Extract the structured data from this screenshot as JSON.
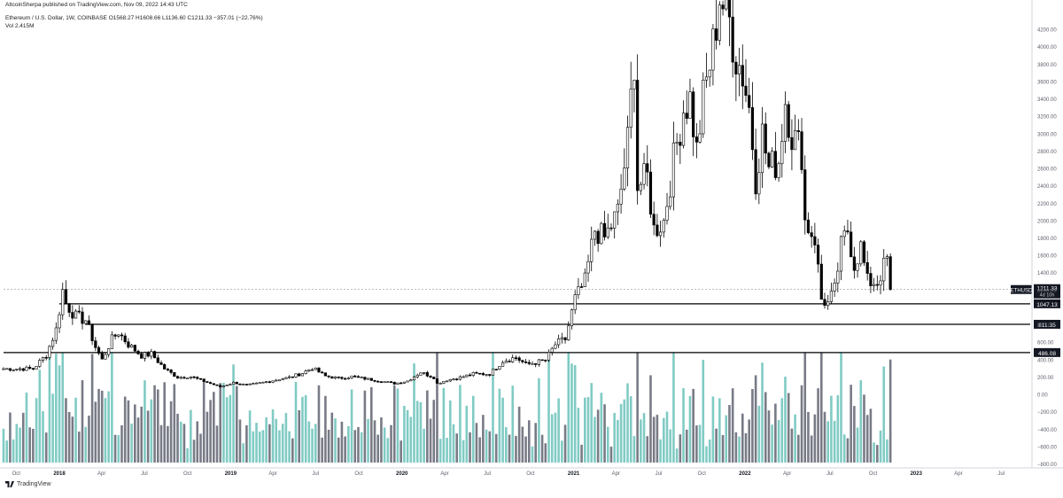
{
  "header": {
    "published": "AltcoinSherpa published on TradingView.com, Nov 09, 2022 14:43 UTC",
    "symbol": "Ethereum / U.S. Dollar, 1W, COINBASE",
    "ohlc": "O1568.27  H1608.66  L1136.60  C1211.33  −357.01 (−22.76%)",
    "volume": "Vol  2.415M"
  },
  "brand": {
    "label": "TradingView"
  },
  "colors": {
    "up_candle": "#ffffff",
    "down_candle": "#000000",
    "candle_outline": "#000000",
    "volume_up": "#80cbc4",
    "volume_down": "#787b86",
    "level_line": "#000000",
    "price_line": "#9598a1"
  },
  "chart_data": {
    "type": "candlestick",
    "interval": "1W",
    "x_tick_labels": [
      "Oct",
      "2018",
      "Apr",
      "Jul",
      "Oct",
      "2019",
      "Apr",
      "Jul",
      "Oct",
      "2020",
      "Apr",
      "Jul",
      "Oct",
      "2021",
      "Apr",
      "Jul",
      "Oct",
      "2022",
      "Apr",
      "Jul",
      "Oct",
      "2023",
      "Apr",
      "Jul"
    ],
    "y_tick_labels": [
      "4200.00",
      "4000.00",
      "3800.00",
      "3600.00",
      "3400.00",
      "3200.00",
      "3000.00",
      "2800.00",
      "2600.00",
      "2400.00",
      "2200.00",
      "2000.00",
      "1800.00",
      "1600.00",
      "1400.00",
      "1200.00",
      "800.00",
      "600.00",
      "400.00",
      "200.00",
      "0.00",
      "−200.00",
      "−400.00",
      "−600.00",
      "−800.00"
    ],
    "ylim": [
      -800,
      4400
    ],
    "price_points": [
      [
        "2017-09-04",
        300
      ],
      [
        "2017-10-02",
        300
      ],
      [
        "2017-11-06",
        300
      ],
      [
        "2017-12-04",
        460
      ],
      [
        "2017-12-25",
        750
      ],
      [
        "2018-01-08",
        1200
      ],
      [
        "2018-01-15",
        1050
      ],
      [
        "2018-02-05",
        900
      ],
      [
        "2018-02-26",
        860
      ],
      [
        "2018-03-19",
        550
      ],
      [
        "2018-04-02",
        400
      ],
      [
        "2018-04-23",
        640
      ],
      [
        "2018-05-07",
        720
      ],
      [
        "2018-05-28",
        580
      ],
      [
        "2018-06-25",
        450
      ],
      [
        "2018-07-16",
        470
      ],
      [
        "2018-08-13",
        300
      ],
      [
        "2018-09-10",
        200
      ],
      [
        "2018-10-08",
        210
      ],
      [
        "2018-11-19",
        130
      ],
      [
        "2018-12-10",
        90
      ],
      [
        "2019-01-07",
        140
      ],
      [
        "2019-02-04",
        110
      ],
      [
        "2019-03-04",
        135
      ],
      [
        "2019-04-01",
        165
      ],
      [
        "2019-05-06",
        200
      ],
      [
        "2019-06-03",
        250
      ],
      [
        "2019-06-24",
        310
      ],
      [
        "2019-07-22",
        215
      ],
      [
        "2019-08-19",
        190
      ],
      [
        "2019-09-16",
        210
      ],
      [
        "2019-10-21",
        180
      ],
      [
        "2019-11-25",
        150
      ],
      [
        "2019-12-16",
        130
      ],
      [
        "2020-01-13",
        160
      ],
      [
        "2020-02-10",
        260
      ],
      [
        "2020-03-09",
        200
      ],
      [
        "2020-03-16",
        130
      ],
      [
        "2020-04-06",
        170
      ],
      [
        "2020-05-04",
        200
      ],
      [
        "2020-06-01",
        240
      ],
      [
        "2020-07-06",
        240
      ],
      [
        "2020-08-03",
        390
      ],
      [
        "2020-08-31",
        430
      ],
      [
        "2020-09-21",
        350
      ],
      [
        "2020-10-12",
        370
      ],
      [
        "2020-11-02",
        400
      ],
      [
        "2020-11-23",
        580
      ],
      [
        "2020-12-14",
        640
      ],
      [
        "2021-01-04",
        1100
      ],
      [
        "2021-01-25",
        1300
      ],
      [
        "2021-02-15",
        1900
      ],
      [
        "2021-03-08",
        1800
      ],
      [
        "2021-04-05",
        2100
      ],
      [
        "2021-04-26",
        2900
      ],
      [
        "2021-05-10",
        3900
      ],
      [
        "2021-05-17",
        2400
      ],
      [
        "2021-06-07",
        2500
      ],
      [
        "2021-06-21",
        1900
      ],
      [
        "2021-07-12",
        2000
      ],
      [
        "2021-08-02",
        2700
      ],
      [
        "2021-08-23",
        3300
      ],
      [
        "2021-09-06",
        3400
      ],
      [
        "2021-09-20",
        2800
      ],
      [
        "2021-10-04",
        3400
      ],
      [
        "2021-10-25",
        4000
      ],
      [
        "2021-11-08",
        4600
      ],
      [
        "2021-11-29",
        4300
      ],
      [
        "2021-12-13",
        3900
      ],
      [
        "2021-12-27",
        3700
      ],
      [
        "2022-01-10",
        3300
      ],
      [
        "2022-01-24",
        2500
      ],
      [
        "2022-02-07",
        3000
      ],
      [
        "2022-02-21",
        2600
      ],
      [
        "2022-03-14",
        2700
      ],
      [
        "2022-03-28",
        3400
      ],
      [
        "2022-04-11",
        3000
      ],
      [
        "2022-05-02",
        2800
      ],
      [
        "2022-05-09",
        2000
      ],
      [
        "2022-05-30",
        1800
      ],
      [
        "2022-06-13",
        1100
      ],
      [
        "2022-06-27",
        1050
      ],
      [
        "2022-07-11",
        1200
      ],
      [
        "2022-07-25",
        1700
      ],
      [
        "2022-08-08",
        1900
      ],
      [
        "2022-08-22",
        1500
      ],
      [
        "2022-09-05",
        1700
      ],
      [
        "2022-09-19",
        1300
      ],
      [
        "2022-10-10",
        1300
      ],
      [
        "2022-10-31",
        1560
      ],
      [
        "2022-11-07",
        1211
      ]
    ],
    "horizontal_levels": [
      1047.13,
      811.35,
      486.08
    ],
    "level_labels": [
      "1047.13",
      "811.35",
      "486.08"
    ],
    "last_price": 1211.33,
    "last_price_label": "1211.33",
    "symbol_tag": "ETHUSD",
    "countdown_label": "4d 10h",
    "volume_overlay": true,
    "grid": false,
    "legend": "top-left"
  }
}
